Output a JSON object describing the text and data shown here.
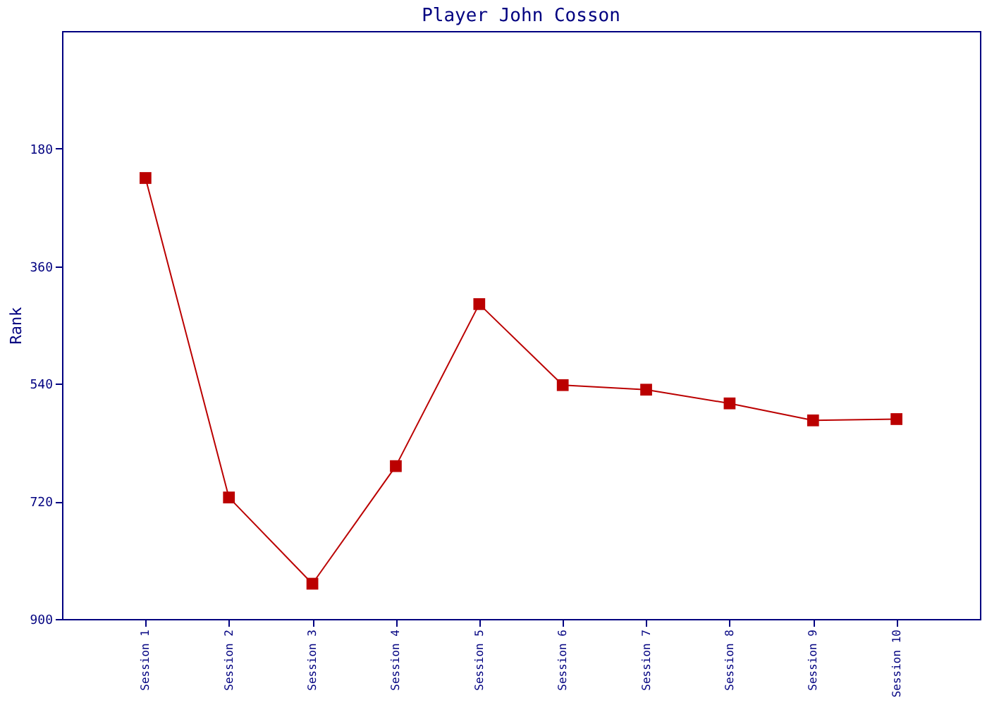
{
  "chart_data": {
    "type": "line",
    "title": "Player John Cosson",
    "ylabel": "Rank",
    "categories": [
      "Session 1",
      "Session 2",
      "Session 3",
      "Session 4",
      "Session 5",
      "Session 6",
      "Session 7",
      "Session 8",
      "Session 9",
      "Session 10"
    ],
    "series": [
      {
        "color": "#bb0000",
        "values": [
          225,
          714,
          846,
          666,
          418,
          542,
          549,
          570,
          596,
          594
        ]
      }
    ],
    "ylim": [
      900,
      0
    ],
    "yticks": [
      180,
      360,
      540,
      720,
      900
    ],
    "grid": false,
    "marker": "square",
    "line_style": "solid"
  }
}
